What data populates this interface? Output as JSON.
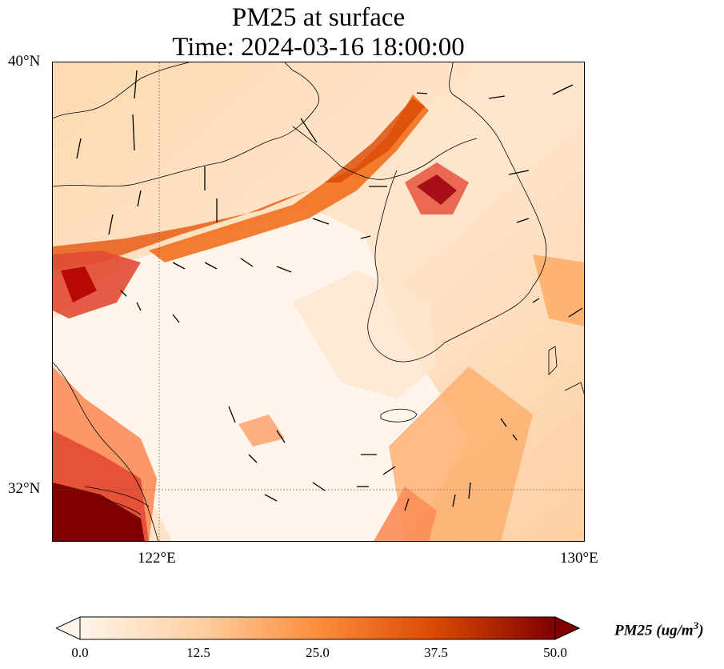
{
  "title": {
    "line1": "PM25 at surface",
    "line2": "Time: 2024-03-16 18:00:00"
  },
  "axes": {
    "lat_labels": [
      "40°N",
      "32°N"
    ],
    "lon_labels": [
      "122°E",
      "130°E"
    ]
  },
  "colorbar": {
    "title": "PM25 (ug/m",
    "title_sup": "3",
    "title_close": ")",
    "ticks": [
      "0.0",
      "12.5",
      "25.0",
      "37.5",
      "50.0"
    ],
    "range": [
      0,
      50
    ],
    "colors": [
      "#fff5eb",
      "#fdd0a2",
      "#fd8d3c",
      "#d94801",
      "#7f0000"
    ]
  },
  "colors": {
    "low": "#fff5eb",
    "high": "#7f0000"
  }
}
